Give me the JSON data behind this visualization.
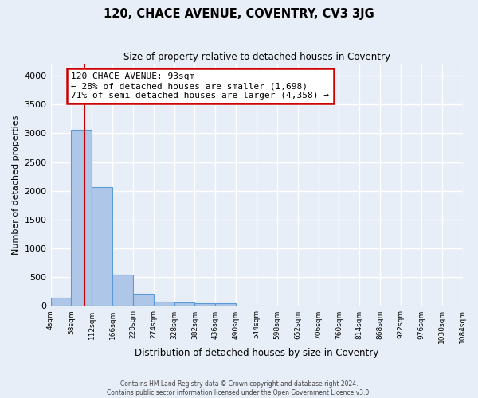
{
  "title": "120, CHACE AVENUE, COVENTRY, CV3 3JG",
  "subtitle": "Size of property relative to detached houses in Coventry",
  "xlabel": "Distribution of detached houses by size in Coventry",
  "ylabel": "Number of detached properties",
  "bin_edges": [
    4,
    58,
    112,
    166,
    220,
    274,
    328,
    382,
    436,
    490,
    544,
    598,
    652,
    706,
    760,
    814,
    868,
    922,
    976,
    1030,
    1084
  ],
  "bin_heights": [
    140,
    3060,
    2060,
    545,
    210,
    75,
    55,
    45,
    45,
    0,
    0,
    0,
    0,
    0,
    0,
    0,
    0,
    0,
    0,
    0
  ],
  "bar_color": "#aec6e8",
  "bar_edge_color": "#5b9bd5",
  "property_size": 93,
  "red_line_color": "#cc0000",
  "annotation_line1": "120 CHACE AVENUE: 93sqm",
  "annotation_line2": "← 28% of detached houses are smaller (1,698)",
  "annotation_line3": "71% of semi-detached houses are larger (4,358) →",
  "annotation_box_color": "#ffffff",
  "annotation_box_edge": "#cc0000",
  "ylim": [
    0,
    4200
  ],
  "background_color": "#e8eef8",
  "grid_color": "#ffffff",
  "footer1": "Contains HM Land Registry data © Crown copyright and database right 2024.",
  "footer2": "Contains public sector information licensed under the Open Government Licence v3.0."
}
